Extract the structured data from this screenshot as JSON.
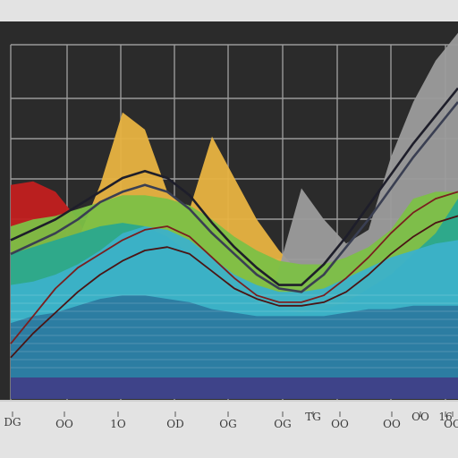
{
  "colors": {
    "page_background": "#e3e3e3",
    "plot_background": "#2b2b2b",
    "grid": "#9a9a9a",
    "axis_line": "#cfcfcf",
    "base_band": "#3e4389"
  },
  "chart_data": {
    "type": "area",
    "title": "",
    "xlabel": "",
    "ylabel": "",
    "grid": true,
    "legend": "none",
    "xlim": [
      0,
      20
    ],
    "ylim": [
      0,
      10
    ],
    "x_ticks": [
      "DG",
      "OO",
      "1O",
      "OD",
      "OG",
      "OG",
      "TG",
      "OO",
      "OO",
      "OO",
      "16",
      "OO"
    ],
    "x": [
      0,
      1,
      2,
      3,
      4,
      5,
      6,
      7,
      8,
      9,
      10,
      11,
      12,
      13,
      14,
      15,
      16,
      17,
      18,
      19,
      20
    ],
    "area_series": [
      {
        "color": "#c21f1f",
        "values": [
          6.2,
          6.3,
          6.0,
          5.2,
          4.0,
          2.8,
          2.2,
          2.0,
          1.9,
          1.8,
          1.7,
          1.6,
          1.5,
          1.5,
          1.5,
          1.5,
          1.6,
          1.7,
          1.8,
          1.8,
          1.8
        ]
      },
      {
        "color": "#e8b341",
        "values": [
          3.0,
          3.4,
          3.8,
          4.6,
          6.2,
          8.3,
          7.8,
          6.0,
          5.5,
          7.6,
          6.4,
          5.2,
          4.3,
          3.6,
          3.2,
          3.0,
          3.0,
          3.0,
          3.0,
          3.0,
          3.0
        ]
      },
      {
        "color": "#9c9c9c",
        "values": [
          2.0,
          2.0,
          2.0,
          2.0,
          2.0,
          2.0,
          2.0,
          2.0,
          2.0,
          2.0,
          2.0,
          2.0,
          3.8,
          6.1,
          5.2,
          4.5,
          4.9,
          7.0,
          8.6,
          9.8,
          10.6
        ]
      },
      {
        "color": "#7cc046",
        "values": [
          5.0,
          5.2,
          5.3,
          5.5,
          5.7,
          5.9,
          5.9,
          5.8,
          5.6,
          5.2,
          4.7,
          4.3,
          4.0,
          3.9,
          3.9,
          4.1,
          4.4,
          4.9,
          5.8,
          6.0,
          6.0
        ]
      },
      {
        "color": "#2aa88e",
        "values": [
          4.2,
          4.4,
          4.6,
          4.8,
          5.0,
          5.1,
          5.0,
          4.7,
          4.2,
          3.6,
          3.1,
          2.8,
          2.6,
          2.5,
          2.6,
          2.8,
          3.2,
          3.6,
          4.2,
          4.8,
          5.8
        ]
      },
      {
        "color": "#3cb1c9",
        "values": [
          3.3,
          3.4,
          3.6,
          3.9,
          4.3,
          4.8,
          5.0,
          4.9,
          4.6,
          4.1,
          3.6,
          3.3,
          3.1,
          3.1,
          3.2,
          3.5,
          3.8,
          4.1,
          4.3,
          4.5,
          4.6
        ]
      },
      {
        "color": "#2b7aa0",
        "values": [
          2.2,
          2.4,
          2.5,
          2.7,
          2.9,
          3.0,
          3.0,
          2.9,
          2.8,
          2.6,
          2.5,
          2.4,
          2.4,
          2.4,
          2.4,
          2.5,
          2.6,
          2.6,
          2.7,
          2.7,
          2.7
        ]
      }
    ],
    "line_series": [
      {
        "color": "#1e1e2a",
        "values": [
          4.6,
          4.9,
          5.2,
          5.6,
          6.0,
          6.4,
          6.6,
          6.4,
          5.9,
          5.1,
          4.4,
          3.8,
          3.3,
          3.3,
          3.9,
          4.7,
          5.6,
          6.5,
          7.4,
          8.2,
          9.0
        ]
      },
      {
        "color": "#3a3f52",
        "values": [
          4.2,
          4.5,
          4.8,
          5.2,
          5.7,
          6.0,
          6.2,
          6.0,
          5.5,
          4.8,
          4.2,
          3.6,
          3.2,
          3.1,
          3.6,
          4.4,
          5.2,
          6.1,
          7.0,
          7.8,
          8.6
        ]
      },
      {
        "color": "#7a1f1f",
        "values": [
          1.6,
          2.4,
          3.2,
          3.8,
          4.2,
          4.6,
          4.9,
          5.0,
          4.7,
          4.1,
          3.5,
          3.0,
          2.8,
          2.8,
          3.0,
          3.5,
          4.1,
          4.8,
          5.4,
          5.8,
          6.0
        ]
      },
      {
        "color": "#4a1414",
        "values": [
          1.2,
          1.9,
          2.5,
          3.1,
          3.6,
          4.0,
          4.3,
          4.4,
          4.2,
          3.7,
          3.2,
          2.9,
          2.7,
          2.7,
          2.8,
          3.1,
          3.6,
          4.2,
          4.7,
          5.1,
          5.3
        ]
      }
    ]
  }
}
